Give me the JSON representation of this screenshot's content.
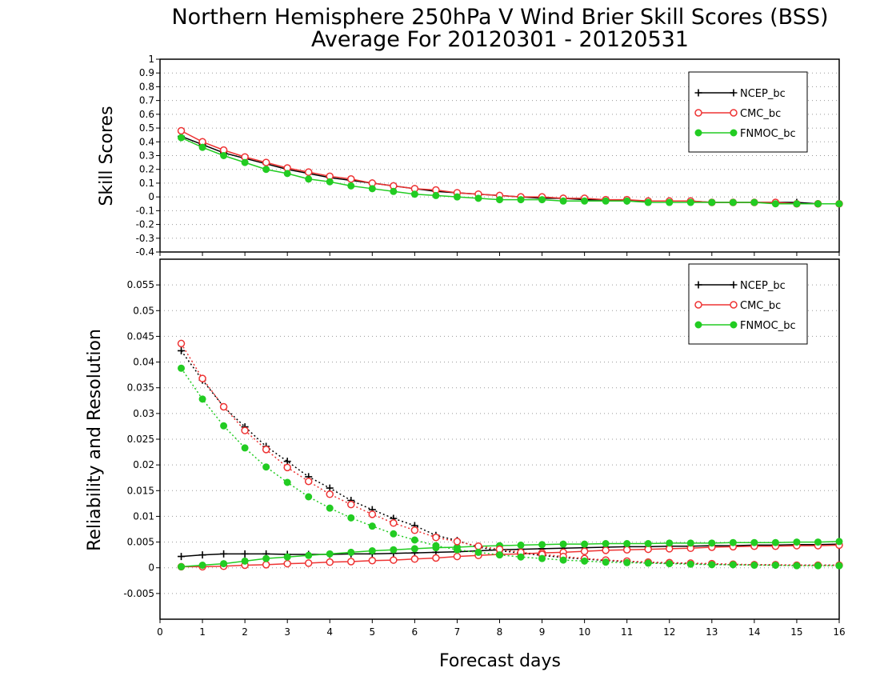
{
  "chart_data": [
    {
      "type": "line",
      "title": "Northern Hemisphere 250hPa V Wind Brier Skill Scores (BSS)",
      "subtitle": "Average For 20120301 - 20120531",
      "ylabel": "Skill Scores",
      "xlabel": "",
      "xlim": [
        0,
        16
      ],
      "ylim": [
        -0.4,
        1
      ],
      "yticks": [
        -0.4,
        -0.3,
        -0.2,
        -0.1,
        0,
        0.1,
        0.2,
        0.3,
        0.4,
        0.5,
        0.6,
        0.7,
        0.8,
        0.9,
        1
      ],
      "ytick_labels": [
        "-0.4",
        "-0.3",
        "-0.2",
        "-0.1",
        "0",
        "0.1",
        "0.2",
        "0.3",
        "0.4",
        "0.5",
        "0.6",
        "0.7",
        "0.8",
        "0.9",
        "1"
      ],
      "grid": "horizontal-dotted",
      "legend_position": "top-right",
      "x": [
        0.5,
        1,
        1.5,
        2,
        2.5,
        3,
        3.5,
        4,
        4.5,
        5,
        5.5,
        6,
        6.5,
        7,
        7.5,
        8,
        8.5,
        9,
        9.5,
        10,
        10.5,
        11,
        11.5,
        12,
        12.5,
        13,
        13.5,
        14,
        14.5,
        15,
        15.5,
        16
      ],
      "series": [
        {
          "name": "NCEP_bc",
          "color": "#000000",
          "marker": "plus",
          "values": [
            0.44,
            0.38,
            0.32,
            0.28,
            0.24,
            0.2,
            0.17,
            0.14,
            0.12,
            0.1,
            0.08,
            0.06,
            0.04,
            0.03,
            0.02,
            0.01,
            0.0,
            -0.01,
            -0.01,
            -0.02,
            -0.02,
            -0.03,
            -0.03,
            -0.03,
            -0.03,
            -0.04,
            -0.04,
            -0.04,
            -0.04,
            -0.04,
            -0.05,
            -0.05
          ]
        },
        {
          "name": "CMC_bc",
          "color": "#ee3333",
          "marker": "open-circle",
          "values": [
            0.48,
            0.4,
            0.34,
            0.29,
            0.25,
            0.21,
            0.18,
            0.15,
            0.13,
            0.1,
            0.08,
            0.06,
            0.05,
            0.03,
            0.02,
            0.01,
            0.0,
            0.0,
            -0.01,
            -0.01,
            -0.02,
            -0.02,
            -0.03,
            -0.03,
            -0.03,
            -0.04,
            -0.04,
            -0.04,
            -0.04,
            -0.05,
            -0.05,
            -0.05
          ]
        },
        {
          "name": "FNMOC_bc",
          "color": "#22cc22",
          "marker": "filled-circle",
          "values": [
            0.43,
            0.36,
            0.3,
            0.25,
            0.2,
            0.17,
            0.13,
            0.11,
            0.08,
            0.06,
            0.04,
            0.02,
            0.01,
            0.0,
            -0.01,
            -0.02,
            -0.02,
            -0.02,
            -0.03,
            -0.03,
            -0.03,
            -0.03,
            -0.04,
            -0.04,
            -0.04,
            -0.04,
            -0.04,
            -0.04,
            -0.05,
            -0.05,
            -0.05,
            -0.05
          ]
        }
      ]
    },
    {
      "type": "line",
      "ylabel": "Reliability and Resolution",
      "xlabel": "Forecast days",
      "xlim": [
        0,
        16
      ],
      "ylim": [
        -0.01,
        0.06
      ],
      "yticks": [
        -0.005,
        0,
        0.005,
        0.01,
        0.015,
        0.02,
        0.025,
        0.03,
        0.035,
        0.04,
        0.045,
        0.05,
        0.055
      ],
      "ytick_labels": [
        "-0.005",
        "0",
        "0.005",
        "0.01",
        "0.015",
        "0.02",
        "0.025",
        "0.03",
        "0.035",
        "0.04",
        "0.045",
        "0.05",
        "0.055"
      ],
      "xticks": [
        0,
        1,
        2,
        3,
        4,
        5,
        6,
        7,
        8,
        9,
        10,
        11,
        12,
        13,
        14,
        15,
        16
      ],
      "xtick_labels": [
        "0",
        "1",
        "2",
        "3",
        "4",
        "5",
        "6",
        "7",
        "8",
        "9",
        "10",
        "11",
        "12",
        "13",
        "14",
        "15",
        "16"
      ],
      "grid": "horizontal-dotted",
      "legend_position": "top-right",
      "x": [
        0.5,
        1,
        1.5,
        2,
        2.5,
        3,
        3.5,
        4,
        4.5,
        5,
        5.5,
        6,
        6.5,
        7,
        7.5,
        8,
        8.5,
        9,
        9.5,
        10,
        10.5,
        11,
        11.5,
        12,
        12.5,
        13,
        13.5,
        14,
        14.5,
        15,
        15.5,
        16
      ],
      "series": [
        {
          "name": "NCEP_bc",
          "kind": "reliability",
          "color": "#000000",
          "marker": "plus",
          "line": "solid",
          "values": [
            0.0022,
            0.0025,
            0.0027,
            0.0027,
            0.0027,
            0.0026,
            0.0026,
            0.0026,
            0.0027,
            0.0027,
            0.0028,
            0.0029,
            0.003,
            0.0031,
            0.0033,
            0.0035,
            0.0036,
            0.0037,
            0.0038,
            0.0039,
            0.004,
            0.0041,
            0.0041,
            0.0042,
            0.0042,
            0.0043,
            0.0043,
            0.0044,
            0.0044,
            0.0045,
            0.0045,
            0.0046
          ]
        },
        {
          "name": "CMC_bc",
          "kind": "reliability",
          "color": "#ee3333",
          "marker": "open-circle",
          "line": "solid",
          "values": [
            0.0002,
            0.0002,
            0.0003,
            0.0005,
            0.0006,
            0.0008,
            0.0009,
            0.0011,
            0.0012,
            0.0014,
            0.0015,
            0.0017,
            0.0019,
            0.0022,
            0.0024,
            0.0026,
            0.0027,
            0.0029,
            0.003,
            0.0032,
            0.0034,
            0.0035,
            0.0036,
            0.0037,
            0.0038,
            0.004,
            0.0041,
            0.0042,
            0.0042,
            0.0043,
            0.0043,
            0.0044
          ]
        },
        {
          "name": "FNMOC_bc",
          "kind": "reliability",
          "color": "#22cc22",
          "marker": "filled-circle",
          "line": "solid",
          "values": [
            0.0002,
            0.0005,
            0.0008,
            0.0013,
            0.0018,
            0.0021,
            0.0024,
            0.0027,
            0.003,
            0.0033,
            0.0035,
            0.0037,
            0.0039,
            0.004,
            0.0042,
            0.0043,
            0.0044,
            0.0045,
            0.0046,
            0.0046,
            0.0047,
            0.0047,
            0.0047,
            0.0048,
            0.0048,
            0.0048,
            0.0049,
            0.0049,
            0.0049,
            0.005,
            0.005,
            0.0051
          ]
        },
        {
          "name": "NCEP_bc",
          "kind": "resolution",
          "color": "#000000",
          "marker": "plus",
          "line": "dotted",
          "values": [
            0.0422,
            0.0365,
            0.0313,
            0.0274,
            0.0236,
            0.0207,
            0.0177,
            0.0155,
            0.0131,
            0.0113,
            0.0096,
            0.0082,
            0.0063,
            0.0053,
            0.004,
            0.0033,
            0.0029,
            0.0024,
            0.002,
            0.0017,
            0.0014,
            0.0012,
            0.001,
            0.0009,
            0.0008,
            0.0007,
            0.0006,
            0.0006,
            0.0005,
            0.0005,
            0.0005,
            0.0005
          ]
        },
        {
          "name": "CMC_bc",
          "kind": "resolution",
          "color": "#ee3333",
          "marker": "open-circle",
          "line": "dotted",
          "values": [
            0.0436,
            0.0368,
            0.0313,
            0.0267,
            0.023,
            0.0195,
            0.0168,
            0.0143,
            0.0123,
            0.0104,
            0.0087,
            0.0073,
            0.0059,
            0.0051,
            0.0042,
            0.0036,
            0.003,
            0.0026,
            0.0022,
            0.0018,
            0.0015,
            0.0013,
            0.0011,
            0.001,
            0.0009,
            0.0008,
            0.0007,
            0.0006,
            0.0006,
            0.0005,
            0.0005,
            0.0005
          ]
        },
        {
          "name": "FNMOC_bc",
          "kind": "resolution",
          "color": "#22cc22",
          "marker": "filled-circle",
          "line": "dotted",
          "values": [
            0.0388,
            0.0328,
            0.0276,
            0.0233,
            0.0196,
            0.0166,
            0.0138,
            0.0116,
            0.0097,
            0.0081,
            0.0066,
            0.0054,
            0.0043,
            0.0035,
            0.003,
            0.0025,
            0.0021,
            0.0018,
            0.0015,
            0.0013,
            0.0011,
            0.001,
            0.0009,
            0.0008,
            0.0007,
            0.0006,
            0.0006,
            0.0005,
            0.0005,
            0.0004,
            0.0004,
            0.0004
          ]
        }
      ]
    }
  ]
}
